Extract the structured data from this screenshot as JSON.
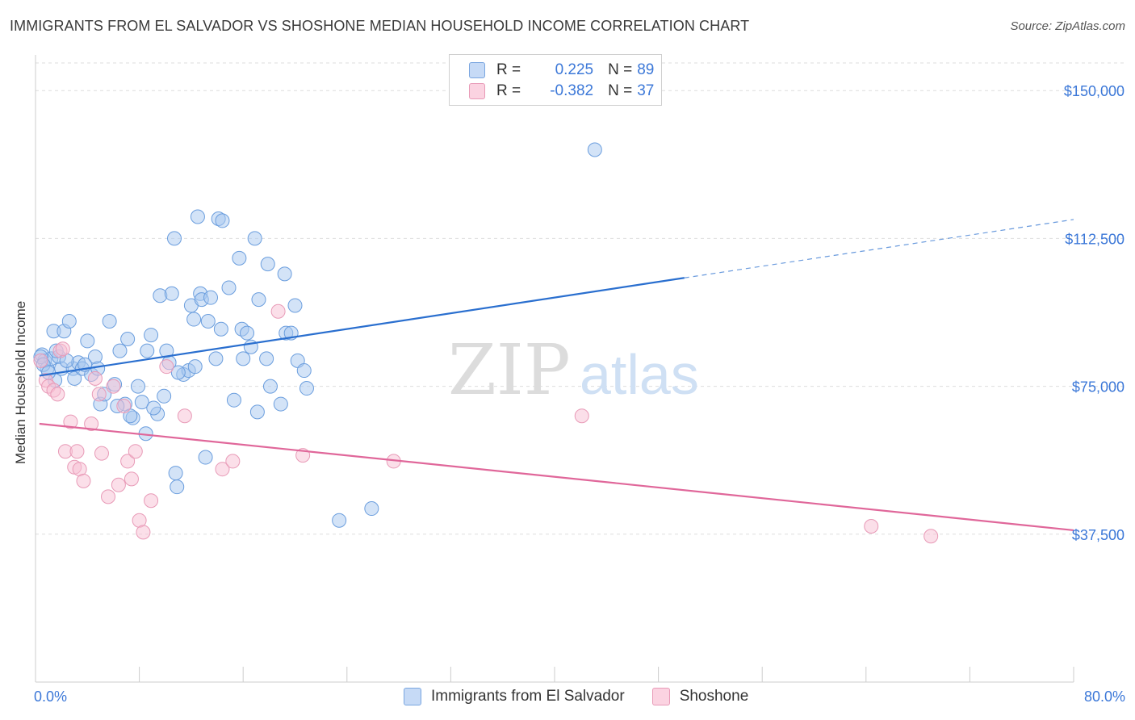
{
  "title": "IMMIGRANTS FROM EL SALVADOR VS SHOSHONE MEDIAN HOUSEHOLD INCOME CORRELATION CHART",
  "source": "Source: ZipAtlas.com",
  "watermark": {
    "zip": "ZIP",
    "atlas": "atlas"
  },
  "legend": {
    "rows": [
      {
        "r_label": "R =",
        "r_value": "0.225",
        "n_label": "N =",
        "n_value": "89",
        "color": "#a8c8f0",
        "border": "#7aa6e0"
      },
      {
        "r_label": "R =",
        "r_value": "-0.382",
        "n_label": "N =",
        "n_value": "37",
        "color": "#f7bfd3",
        "border": "#e89ab7"
      }
    ]
  },
  "bottom_legend": [
    "Immigrants from El Salvador",
    "Shoshone"
  ],
  "chart_data": {
    "type": "scatter",
    "ylabel": "Median Household Income",
    "xlabel": "",
    "xlim": [
      0,
      80
    ],
    "ylim": [
      0,
      157000
    ],
    "x_tick_labels": {
      "min": "0.0%",
      "max": "80.0%"
    },
    "y_ticks": [
      {
        "value": 37500,
        "label": "$37,500"
      },
      {
        "value": 75000,
        "label": "$75,000"
      },
      {
        "value": 112500,
        "label": "$112,500"
      },
      {
        "value": 150000,
        "label": "$150,000"
      }
    ],
    "series": [
      {
        "name": "Immigrants from El Salvador",
        "color": "#a8c8f0",
        "stroke": "#6b9ede",
        "trend_color": "#2a6fcf",
        "trend": {
          "x0": 0.3,
          "y0": 77700,
          "x1": 50,
          "y1": 102500,
          "dash_to_x": 80,
          "dash_to_y": 117300
        },
        "points": [
          [
            0.5,
            83000
          ],
          [
            0.7,
            81500
          ],
          [
            0.9,
            79500
          ],
          [
            1.2,
            82000
          ],
          [
            1.4,
            89000
          ],
          [
            1.5,
            76500
          ],
          [
            1.8,
            82500
          ],
          [
            2.0,
            79500
          ],
          [
            2.2,
            89000
          ],
          [
            2.6,
            91500
          ],
          [
            2.9,
            79500
          ],
          [
            3.0,
            77000
          ],
          [
            3.3,
            81000
          ],
          [
            3.6,
            79500
          ],
          [
            4.0,
            86500
          ],
          [
            4.3,
            78000
          ],
          [
            4.6,
            82500
          ],
          [
            4.8,
            79500
          ],
          [
            5.0,
            70500
          ],
          [
            5.3,
            73000
          ],
          [
            5.7,
            91500
          ],
          [
            6.1,
            75500
          ],
          [
            6.5,
            84000
          ],
          [
            6.9,
            70500
          ],
          [
            7.1,
            87000
          ],
          [
            7.5,
            67000
          ],
          [
            7.9,
            75000
          ],
          [
            8.2,
            71000
          ],
          [
            8.5,
            63000
          ],
          [
            8.6,
            84000
          ],
          [
            8.9,
            88000
          ],
          [
            9.4,
            68000
          ],
          [
            9.6,
            98000
          ],
          [
            9.9,
            72500
          ],
          [
            10.1,
            84000
          ],
          [
            10.3,
            81000
          ],
          [
            10.5,
            98500
          ],
          [
            10.7,
            112500
          ],
          [
            10.8,
            53000
          ],
          [
            10.9,
            49500
          ],
          [
            11.4,
            78000
          ],
          [
            11.8,
            79000
          ],
          [
            12.0,
            95500
          ],
          [
            12.2,
            92000
          ],
          [
            12.5,
            118000
          ],
          [
            12.7,
            98500
          ],
          [
            12.8,
            97000
          ],
          [
            13.1,
            57000
          ],
          [
            13.3,
            91500
          ],
          [
            13.5,
            97500
          ],
          [
            13.9,
            82000
          ],
          [
            14.1,
            117500
          ],
          [
            14.3,
            89500
          ],
          [
            14.4,
            117000
          ],
          [
            14.9,
            100000
          ],
          [
            15.3,
            71500
          ],
          [
            15.7,
            107500
          ],
          [
            15.9,
            89500
          ],
          [
            16.0,
            82000
          ],
          [
            16.3,
            88500
          ],
          [
            16.9,
            112500
          ],
          [
            17.1,
            68500
          ],
          [
            17.2,
            97000
          ],
          [
            17.8,
            82000
          ],
          [
            17.9,
            106000
          ],
          [
            18.1,
            75000
          ],
          [
            18.9,
            70500
          ],
          [
            19.2,
            103500
          ],
          [
            19.3,
            88500
          ],
          [
            19.7,
            88500
          ],
          [
            20.0,
            95500
          ],
          [
            20.2,
            81500
          ],
          [
            20.7,
            79000
          ],
          [
            20.9,
            74500
          ],
          [
            23.4,
            41000
          ],
          [
            25.9,
            44000
          ],
          [
            43.1,
            135000
          ],
          [
            0.4,
            82500
          ],
          [
            0.6,
            80500
          ],
          [
            1.0,
            78500
          ],
          [
            1.6,
            84000
          ],
          [
            2.4,
            81500
          ],
          [
            3.8,
            80500
          ],
          [
            6.3,
            70000
          ],
          [
            7.3,
            67500
          ],
          [
            9.1,
            69500
          ],
          [
            11.0,
            78500
          ],
          [
            12.3,
            80000
          ],
          [
            16.6,
            85000
          ]
        ]
      },
      {
        "name": "Shoshone",
        "color": "#f7bfd3",
        "stroke": "#e89ab7",
        "trend_color": "#e0679a",
        "trend": {
          "x0": 0.3,
          "y0": 65500,
          "x1": 80,
          "y1": 38500
        },
        "points": [
          [
            0.4,
            81500
          ],
          [
            0.8,
            76500
          ],
          [
            1.0,
            75000
          ],
          [
            1.4,
            74000
          ],
          [
            1.7,
            73000
          ],
          [
            1.9,
            84000
          ],
          [
            2.1,
            84500
          ],
          [
            2.3,
            58500
          ],
          [
            2.7,
            66000
          ],
          [
            3.0,
            54500
          ],
          [
            3.2,
            58500
          ],
          [
            3.4,
            54000
          ],
          [
            3.7,
            51000
          ],
          [
            4.3,
            65500
          ],
          [
            4.6,
            77000
          ],
          [
            4.9,
            73000
          ],
          [
            5.1,
            58000
          ],
          [
            5.6,
            47000
          ],
          [
            6.0,
            75000
          ],
          [
            6.4,
            50000
          ],
          [
            6.8,
            70000
          ],
          [
            7.1,
            56000
          ],
          [
            7.4,
            51500
          ],
          [
            7.7,
            58500
          ],
          [
            8.0,
            41000
          ],
          [
            8.3,
            38000
          ],
          [
            8.9,
            46000
          ],
          [
            10.1,
            80000
          ],
          [
            11.5,
            67500
          ],
          [
            14.4,
            54000
          ],
          [
            15.2,
            56000
          ],
          [
            18.7,
            94000
          ],
          [
            20.6,
            57500
          ],
          [
            27.6,
            56000
          ],
          [
            42.1,
            67500
          ],
          [
            64.4,
            39500
          ],
          [
            69.0,
            37000
          ]
        ]
      }
    ]
  }
}
